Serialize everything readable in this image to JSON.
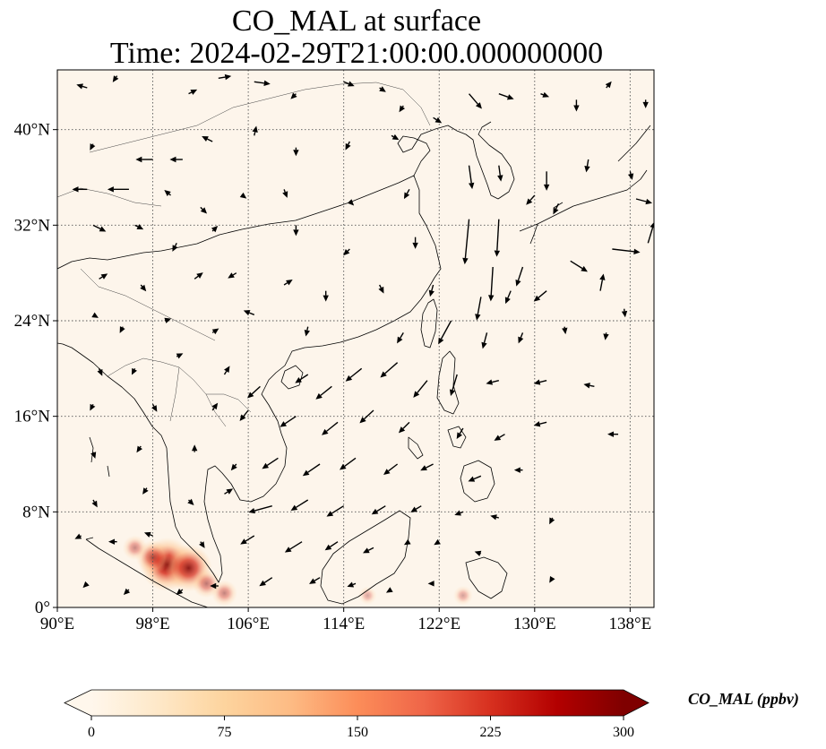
{
  "title_line1": "CO_MAL at surface",
  "title_line2": "Time: 2024-02-29T21:00:00.000000000",
  "map": {
    "extent": {
      "lon_min": 90,
      "lon_max": 140,
      "lat_min": 0,
      "lat_max": 45
    },
    "lon_ticks": [
      {
        "value": 90,
        "label": "90°E"
      },
      {
        "value": 98,
        "label": "98°E"
      },
      {
        "value": 106,
        "label": "106°E"
      },
      {
        "value": 114,
        "label": "114°E"
      },
      {
        "value": 122,
        "label": "122°E"
      },
      {
        "value": 130,
        "label": "130°E"
      },
      {
        "value": 138,
        "label": "138°E"
      }
    ],
    "lat_ticks": [
      {
        "value": 0,
        "label": "0°"
      },
      {
        "value": 8,
        "label": "8°N"
      },
      {
        "value": 16,
        "label": "16°N"
      },
      {
        "value": 24,
        "label": "24°N"
      },
      {
        "value": 32,
        "label": "32°N"
      },
      {
        "value": 40,
        "label": "40°N"
      }
    ],
    "gridlines": "dotted",
    "background_color": "#fdf5eb",
    "coastline_color": "#000000"
  },
  "colorbar": {
    "label": "CO_MAL (ppbv)",
    "min": 0,
    "max": 300,
    "ticks": [
      {
        "value": 0,
        "label": "0"
      },
      {
        "value": 75,
        "label": "75"
      },
      {
        "value": 150,
        "label": "150"
      },
      {
        "value": 225,
        "label": "225"
      },
      {
        "value": 300,
        "label": "300"
      }
    ],
    "colormap": "OrRd",
    "stops": [
      "#fff7ec",
      "#fee8c8",
      "#fdd49e",
      "#fdbb84",
      "#fc8d59",
      "#ef6548",
      "#d7301f",
      "#b30000",
      "#7f0000"
    ],
    "extend": "both"
  },
  "hotspots": [
    {
      "lon": 99.2,
      "lat": 3.6,
      "value": 300
    },
    {
      "lon": 101.0,
      "lat": 3.3,
      "value": 250
    },
    {
      "lon": 98.0,
      "lat": 4.2,
      "value": 150
    },
    {
      "lon": 102.5,
      "lat": 2.0,
      "value": 110
    },
    {
      "lon": 104.0,
      "lat": 1.2,
      "value": 90
    },
    {
      "lon": 96.5,
      "lat": 5.0,
      "value": 80
    },
    {
      "lon": 124.0,
      "lat": 1.0,
      "value": 40
    },
    {
      "lon": 116.0,
      "lat": 1.0,
      "value": 30
    }
  ],
  "wind_vectors": [
    {
      "lon": 92.5,
      "lat": 43.5,
      "u": -1,
      "v": 0.3
    },
    {
      "lon": 95,
      "lat": 44.5,
      "u": -0.4,
      "v": -0.6
    },
    {
      "lon": 101,
      "lat": 43,
      "u": 0.8,
      "v": 0.4
    },
    {
      "lon": 103.5,
      "lat": 44.3,
      "u": 1.2,
      "v": 0.2
    },
    {
      "lon": 106.5,
      "lat": 44,
      "u": 1.5,
      "v": -0.2
    },
    {
      "lon": 110,
      "lat": 43,
      "u": -0.5,
      "v": -0.5
    },
    {
      "lon": 114,
      "lat": 44,
      "u": 1,
      "v": -0.4
    },
    {
      "lon": 117,
      "lat": 43.5,
      "u": 0.6,
      "v": -0.4
    },
    {
      "lon": 119,
      "lat": 42,
      "u": -0.4,
      "v": -0.6
    },
    {
      "lon": 121.5,
      "lat": 41,
      "u": 0.8,
      "v": -0.5
    },
    {
      "lon": 124.5,
      "lat": 43,
      "u": 1.2,
      "v": -1.4
    },
    {
      "lon": 127,
      "lat": 43,
      "u": 1.4,
      "v": -0.5
    },
    {
      "lon": 130.5,
      "lat": 43,
      "u": 0.8,
      "v": -0.3
    },
    {
      "lon": 133.5,
      "lat": 42.5,
      "u": 0,
      "v": -1.1
    },
    {
      "lon": 136,
      "lat": 43.5,
      "u": 0.5,
      "v": 0.6
    },
    {
      "lon": 139.3,
      "lat": 42.5,
      "u": 0,
      "v": -0.8
    },
    {
      "lon": 93,
      "lat": 38.8,
      "u": -0.3,
      "v": -0.6
    },
    {
      "lon": 98,
      "lat": 37.5,
      "u": -1.6,
      "v": 0
    },
    {
      "lon": 100.5,
      "lat": 37.5,
      "u": -1.2,
      "v": 0
    },
    {
      "lon": 103,
      "lat": 39,
      "u": -1,
      "v": 0.5
    },
    {
      "lon": 106.5,
      "lat": 39.5,
      "u": 0.2,
      "v": 0.9
    },
    {
      "lon": 110,
      "lat": 38.5,
      "u": 0,
      "v": -0.8
    },
    {
      "lon": 114.5,
      "lat": 39,
      "u": -0.4,
      "v": -0.8
    },
    {
      "lon": 118,
      "lat": 39.5,
      "u": 0.7,
      "v": -0.4
    },
    {
      "lon": 124.5,
      "lat": 37,
      "u": 0.3,
      "v": -2.2
    },
    {
      "lon": 127,
      "lat": 37,
      "u": 0.2,
      "v": -1.5
    },
    {
      "lon": 131,
      "lat": 36.5,
      "u": 0,
      "v": -1.8
    },
    {
      "lon": 134.5,
      "lat": 37.5,
      "u": -0.2,
      "v": -1.2
    },
    {
      "lon": 138,
      "lat": 36.5,
      "u": 0.2,
      "v": -0.8
    },
    {
      "lon": 92.5,
      "lat": 35,
      "u": -1.4,
      "v": 0
    },
    {
      "lon": 96,
      "lat": 35,
      "u": -2,
      "v": 0
    },
    {
      "lon": 99.5,
      "lat": 34.5,
      "u": -0.6,
      "v": 0.5
    },
    {
      "lon": 102,
      "lat": 33.5,
      "u": 0.6,
      "v": -0.6
    },
    {
      "lon": 105.5,
      "lat": 34.5,
      "u": 0.4,
      "v": -0.3
    },
    {
      "lon": 109,
      "lat": 35,
      "u": 0.3,
      "v": -0.8
    },
    {
      "lon": 114.5,
      "lat": 34,
      "u": 0.4,
      "v": -0.4
    },
    {
      "lon": 119.5,
      "lat": 35,
      "u": -0.5,
      "v": -0.9
    },
    {
      "lon": 124.5,
      "lat": 32.5,
      "u": -0.4,
      "v": -4.2
    },
    {
      "lon": 127,
      "lat": 32.5,
      "u": -0.2,
      "v": -3.5
    },
    {
      "lon": 130,
      "lat": 34.5,
      "u": -0.8,
      "v": -0.9
    },
    {
      "lon": 132,
      "lat": 33.8,
      "u": -0.5,
      "v": -1.0
    },
    {
      "lon": 138.5,
      "lat": 34.2,
      "u": 1.5,
      "v": -0.4
    },
    {
      "lon": 93,
      "lat": 32,
      "u": 1.2,
      "v": -0.6
    },
    {
      "lon": 96.5,
      "lat": 32,
      "u": 0.8,
      "v": -0.4
    },
    {
      "lon": 100,
      "lat": 30.5,
      "u": -0.4,
      "v": -0.8
    },
    {
      "lon": 103,
      "lat": 31.5,
      "u": 0.5,
      "v": 0.5
    },
    {
      "lon": 110,
      "lat": 32,
      "u": 0,
      "v": -1
    },
    {
      "lon": 114.5,
      "lat": 30,
      "u": -0.6,
      "v": -0.6
    },
    {
      "lon": 120,
      "lat": 31,
      "u": 0,
      "v": -1.1
    },
    {
      "lon": 126.5,
      "lat": 28.5,
      "u": -0.2,
      "v": -3.2
    },
    {
      "lon": 129,
      "lat": 28.5,
      "u": -0.6,
      "v": -1.8
    },
    {
      "lon": 133,
      "lat": 29,
      "u": 1.6,
      "v": -1.0
    },
    {
      "lon": 136.5,
      "lat": 30,
      "u": 2.6,
      "v": -0.3
    },
    {
      "lon": 139.5,
      "lat": 30.5,
      "u": 0.6,
      "v": 2.0
    },
    {
      "lon": 93.5,
      "lat": 27.5,
      "u": 0.8,
      "v": 0.5
    },
    {
      "lon": 97,
      "lat": 27,
      "u": 0.5,
      "v": -0.6
    },
    {
      "lon": 101.5,
      "lat": 27.5,
      "u": 0.8,
      "v": 0.6
    },
    {
      "lon": 105,
      "lat": 28,
      "u": -0.8,
      "v": -0.5
    },
    {
      "lon": 109,
      "lat": 27,
      "u": 0.8,
      "v": 0.5
    },
    {
      "lon": 112.5,
      "lat": 26.5,
      "u": 0,
      "v": -1
    },
    {
      "lon": 117,
      "lat": 27,
      "u": 0.4,
      "v": -0.8
    },
    {
      "lon": 121.5,
      "lat": 27,
      "u": -0.3,
      "v": -1.1
    },
    {
      "lon": 125.5,
      "lat": 26,
      "u": -0.4,
      "v": -2.2
    },
    {
      "lon": 128,
      "lat": 26.5,
      "u": -0.5,
      "v": -1.2
    },
    {
      "lon": 131,
      "lat": 26.5,
      "u": -1.2,
      "v": -1.0
    },
    {
      "lon": 135.5,
      "lat": 26.5,
      "u": 0.3,
      "v": 1.6
    },
    {
      "lon": 137.5,
      "lat": 25,
      "u": 0.1,
      "v": -0.8
    },
    {
      "lon": 93,
      "lat": 24.5,
      "u": 0.5,
      "v": -0.3
    },
    {
      "lon": 95.5,
      "lat": 23.5,
      "u": -0.3,
      "v": -0.6
    },
    {
      "lon": 99,
      "lat": 24,
      "u": 0.6,
      "v": 0.2
    },
    {
      "lon": 103,
      "lat": 23,
      "u": 0.6,
      "v": 0.4
    },
    {
      "lon": 106.5,
      "lat": 24.5,
      "u": -1,
      "v": 0.4
    },
    {
      "lon": 111,
      "lat": 23.5,
      "u": -0.2,
      "v": -0.9
    },
    {
      "lon": 119,
      "lat": 23,
      "u": -0.6,
      "v": -1.0
    },
    {
      "lon": 123,
      "lat": 24,
      "u": -1.2,
      "v": -2.2
    },
    {
      "lon": 126,
      "lat": 23,
      "u": -0.4,
      "v": -1.5
    },
    {
      "lon": 129,
      "lat": 23,
      "u": -0.4,
      "v": -1.0
    },
    {
      "lon": 132.5,
      "lat": 23.5,
      "u": 0.1,
      "v": -0.7
    },
    {
      "lon": 136,
      "lat": 23,
      "u": -0.1,
      "v": -0.7
    },
    {
      "lon": 93.5,
      "lat": 20,
      "u": 0.3,
      "v": -0.7
    },
    {
      "lon": 96.5,
      "lat": 20,
      "u": -0.3,
      "v": -0.6
    },
    {
      "lon": 100,
      "lat": 21,
      "u": 0.6,
      "v": 0.3
    },
    {
      "lon": 104,
      "lat": 19.5,
      "u": 0.5,
      "v": 0.8
    },
    {
      "lon": 107,
      "lat": 18.5,
      "u": -1.2,
      "v": -1.1
    },
    {
      "lon": 111,
      "lat": 19.5,
      "u": -1.2,
      "v": -0.8
    },
    {
      "lon": 113,
      "lat": 18.5,
      "u": -1.5,
      "v": -1.2
    },
    {
      "lon": 115.5,
      "lat": 20,
      "u": -1.5,
      "v": -1.2
    },
    {
      "lon": 118.5,
      "lat": 20.5,
      "u": -1.6,
      "v": -1.4
    },
    {
      "lon": 121,
      "lat": 19,
      "u": -1.3,
      "v": -1.6
    },
    {
      "lon": 123.5,
      "lat": 19.5,
      "u": -0.6,
      "v": -2.0
    },
    {
      "lon": 127,
      "lat": 19,
      "u": -1.2,
      "v": -0.3
    },
    {
      "lon": 131,
      "lat": 19,
      "u": -1.2,
      "v": -0.3
    },
    {
      "lon": 135,
      "lat": 18.5,
      "u": -1,
      "v": 0.2
    },
    {
      "lon": 93,
      "lat": 17,
      "u": -0.3,
      "v": -0.6
    },
    {
      "lon": 98,
      "lat": 17,
      "u": 0.4,
      "v": -0.7
    },
    {
      "lon": 103,
      "lat": 16.5,
      "u": 0.5,
      "v": 0.7
    },
    {
      "lon": 106,
      "lat": 16.5,
      "u": -0.8,
      "v": -1.0
    },
    {
      "lon": 110,
      "lat": 16,
      "u": -1.5,
      "v": -1.0
    },
    {
      "lon": 113.5,
      "lat": 15.5,
      "u": -1.5,
      "v": -1.2
    },
    {
      "lon": 116.5,
      "lat": 16.5,
      "u": -1.3,
      "v": -1.2
    },
    {
      "lon": 119.5,
      "lat": 15.5,
      "u": -1.0,
      "v": -1.0
    },
    {
      "lon": 124,
      "lat": 15,
      "u": -0.6,
      "v": -1.0
    },
    {
      "lon": 127.5,
      "lat": 14.5,
      "u": -1.0,
      "v": -0.6
    },
    {
      "lon": 131,
      "lat": 15.5,
      "u": -1.2,
      "v": -0.3
    },
    {
      "lon": 137,
      "lat": 14.5,
      "u": -1.0,
      "v": 0
    },
    {
      "lon": 93,
      "lat": 13,
      "u": 0.2,
      "v": -0.6
    },
    {
      "lon": 97,
      "lat": 13.5,
      "u": -0.4,
      "v": -0.6
    },
    {
      "lon": 101.5,
      "lat": 13,
      "u": 0,
      "v": 0.7
    },
    {
      "lon": 105,
      "lat": 12,
      "u": -0.5,
      "v": -0.6
    },
    {
      "lon": 108.5,
      "lat": 12.5,
      "u": -1.5,
      "v": -1.0
    },
    {
      "lon": 112,
      "lat": 12,
      "u": -1.6,
      "v": -1.1
    },
    {
      "lon": 115,
      "lat": 12.5,
      "u": -1.5,
      "v": -1.1
    },
    {
      "lon": 118.5,
      "lat": 12,
      "u": -1.3,
      "v": -1.0
    },
    {
      "lon": 121.5,
      "lat": 12,
      "u": -1.2,
      "v": -0.6
    },
    {
      "lon": 125.5,
      "lat": 11,
      "u": -1.2,
      "v": -0.5
    },
    {
      "lon": 129,
      "lat": 11.5,
      "u": -0.8,
      "v": 0
    },
    {
      "lon": 93,
      "lat": 9,
      "u": 0.4,
      "v": -0.7
    },
    {
      "lon": 97.5,
      "lat": 10,
      "u": -0.4,
      "v": -0.6
    },
    {
      "lon": 101,
      "lat": 9,
      "u": 0.5,
      "v": -0.5
    },
    {
      "lon": 104,
      "lat": 9.5,
      "u": 0.8,
      "v": 0.5
    },
    {
      "lon": 108,
      "lat": 8.5,
      "u": -2.2,
      "v": -0.6
    },
    {
      "lon": 111,
      "lat": 9,
      "u": -1.6,
      "v": -1.0
    },
    {
      "lon": 114,
      "lat": 8.5,
      "u": -1.6,
      "v": -1.0
    },
    {
      "lon": 117.5,
      "lat": 8.5,
      "u": -1.3,
      "v": -0.8
    },
    {
      "lon": 120.5,
      "lat": 8.5,
      "u": -1.0,
      "v": -0.6
    },
    {
      "lon": 124,
      "lat": 8,
      "u": -0.8,
      "v": -0.3
    },
    {
      "lon": 127,
      "lat": 7.5,
      "u": -0.8,
      "v": 0.2
    },
    {
      "lon": 131.5,
      "lat": 7.5,
      "u": -0.3,
      "v": -0.6
    },
    {
      "lon": 92,
      "lat": 6,
      "u": -0.6,
      "v": -0.3
    },
    {
      "lon": 95,
      "lat": 5.5,
      "u": -0.8,
      "v": 0
    },
    {
      "lon": 98,
      "lat": 6,
      "u": -0.8,
      "v": 0.3
    },
    {
      "lon": 102,
      "lat": 5.5,
      "u": 0.4,
      "v": -0.6
    },
    {
      "lon": 106.5,
      "lat": 6,
      "u": -1.3,
      "v": -0.8
    },
    {
      "lon": 110.5,
      "lat": 5.5,
      "u": -1.6,
      "v": -1.0
    },
    {
      "lon": 113.5,
      "lat": 5.5,
      "u": -1.2,
      "v": -0.8
    },
    {
      "lon": 116.5,
      "lat": 5,
      "u": -1.0,
      "v": -0.5
    },
    {
      "lon": 119.5,
      "lat": 5.5,
      "u": -0.5,
      "v": -0.3
    },
    {
      "lon": 122,
      "lat": 5.5,
      "u": -0.5,
      "v": -0.3
    },
    {
      "lon": 125.5,
      "lat": 4.5,
      "u": -0.6,
      "v": 0.2
    },
    {
      "lon": 92.5,
      "lat": 2,
      "u": -0.4,
      "v": -0.4
    },
    {
      "lon": 96,
      "lat": 1.5,
      "u": -0.5,
      "v": -0.5
    },
    {
      "lon": 100.5,
      "lat": 1.5,
      "u": -0.6,
      "v": -0.5
    },
    {
      "lon": 103.5,
      "lat": 1.8,
      "u": -0.8,
      "v": 0
    },
    {
      "lon": 108,
      "lat": 2.5,
      "u": -1.2,
      "v": -0.8
    },
    {
      "lon": 112,
      "lat": 2.5,
      "u": -1.0,
      "v": -0.6
    },
    {
      "lon": 115,
      "lat": 2,
      "u": -0.8,
      "v": -0.3
    },
    {
      "lon": 118,
      "lat": 1.5,
      "u": -0.5,
      "v": -0.3
    },
    {
      "lon": 121.5,
      "lat": 2,
      "u": -0.5,
      "v": 0
    },
    {
      "lon": 131.5,
      "lat": 2.5,
      "u": -0.3,
      "v": -0.5
    }
  ]
}
